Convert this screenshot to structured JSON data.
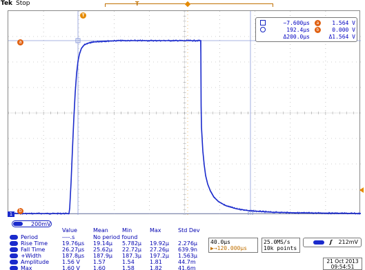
{
  "header": {
    "brand": "Tek",
    "run_state": "Stop"
  },
  "markers": {
    "cursor_a_level_label": "a",
    "cursor_b_level_label": "b",
    "channel_ground_label": "1",
    "trigger_marker_label": "T",
    "trigger_position_label": "T"
  },
  "cursor_readout": {
    "rows": [
      {
        "shape": "square",
        "time": "−7.600µs",
        "badge": "a",
        "voltage": "1.564 V"
      },
      {
        "shape": "circle",
        "time": "192.4µs",
        "badge": "b",
        "voltage": "0.000 V"
      },
      {
        "shape": "",
        "time": "Δ200.0µs",
        "badge": "",
        "voltage": "Δ1.564 V"
      }
    ]
  },
  "channel": {
    "scale": "200mV"
  },
  "measurements": {
    "headers": [
      "Value",
      "Mean",
      "Min",
      "Max",
      "Std Dev"
    ],
    "rows": [
      {
        "name": "Period",
        "value": "----.s",
        "mean": "No period found",
        "min": "",
        "max": "",
        "std": ""
      },
      {
        "name": "Rise Time",
        "value": "19.76µs",
        "mean": "19.14µ",
        "min": "5.782µ",
        "max": "19.92µ",
        "std": "2.276µ"
      },
      {
        "name": "Fall Time",
        "value": "26.27µs",
        "mean": "25.62µ",
        "min": "22.72µ",
        "max": "27.26µ",
        "std": "639.9n"
      },
      {
        "name": "+Width",
        "value": "187.8µs",
        "mean": "187.9µ",
        "min": "187.3µ",
        "max": "197.2µ",
        "std": "1.563µ"
      },
      {
        "name": "Amplitude",
        "value": "1.56 V",
        "mean": "1.57",
        "min": "1.54",
        "max": "1.81",
        "std": "44.7m"
      },
      {
        "name": "Max",
        "value": "1.60 V",
        "mean": "1.60",
        "min": "1.58",
        "max": "1.82",
        "std": "41.6m"
      }
    ]
  },
  "horizontal": {
    "scale": "40.0µs",
    "delay": "▶→120.000µs"
  },
  "acquisition": {
    "sample_rate": "25.0MS/s",
    "record_length": "10k points"
  },
  "trigger": {
    "slope": "ʃ",
    "level": "212mV"
  },
  "datetime": {
    "date": "21 Oct  2013",
    "time": "09:54:51"
  },
  "waveform": {
    "ch1_color": "#1a2acc",
    "cursor_color": "#8a9ad8",
    "trigger_color": "#e58a00",
    "points": [
      [
        0,
        0.0
      ],
      [
        88,
        0.0
      ],
      [
        89,
        0.03
      ],
      [
        91,
        0.18
      ],
      [
        93,
        0.37
      ],
      [
        95,
        0.55
      ],
      [
        97,
        0.7
      ],
      [
        99,
        0.81
      ],
      [
        101,
        0.88
      ],
      [
        103,
        0.92
      ],
      [
        106,
        0.955
      ],
      [
        110,
        0.975
      ],
      [
        115,
        0.985
      ],
      [
        125,
        0.993
      ],
      [
        140,
        0.997
      ],
      [
        160,
        1.0
      ],
      [
        200,
        1.0
      ],
      [
        255,
        1.0
      ],
      [
        279,
        1.0
      ],
      [
        279.5,
        0.62
      ],
      [
        280,
        0.5
      ],
      [
        282,
        0.36
      ],
      [
        284,
        0.28
      ],
      [
        286,
        0.22
      ],
      [
        289,
        0.17
      ],
      [
        293,
        0.13
      ],
      [
        298,
        0.095
      ],
      [
        305,
        0.068
      ],
      [
        315,
        0.046
      ],
      [
        330,
        0.028
      ],
      [
        350,
        0.016
      ],
      [
        380,
        0.008
      ],
      [
        420,
        0.004
      ],
      [
        511,
        0.0
      ]
    ]
  }
}
